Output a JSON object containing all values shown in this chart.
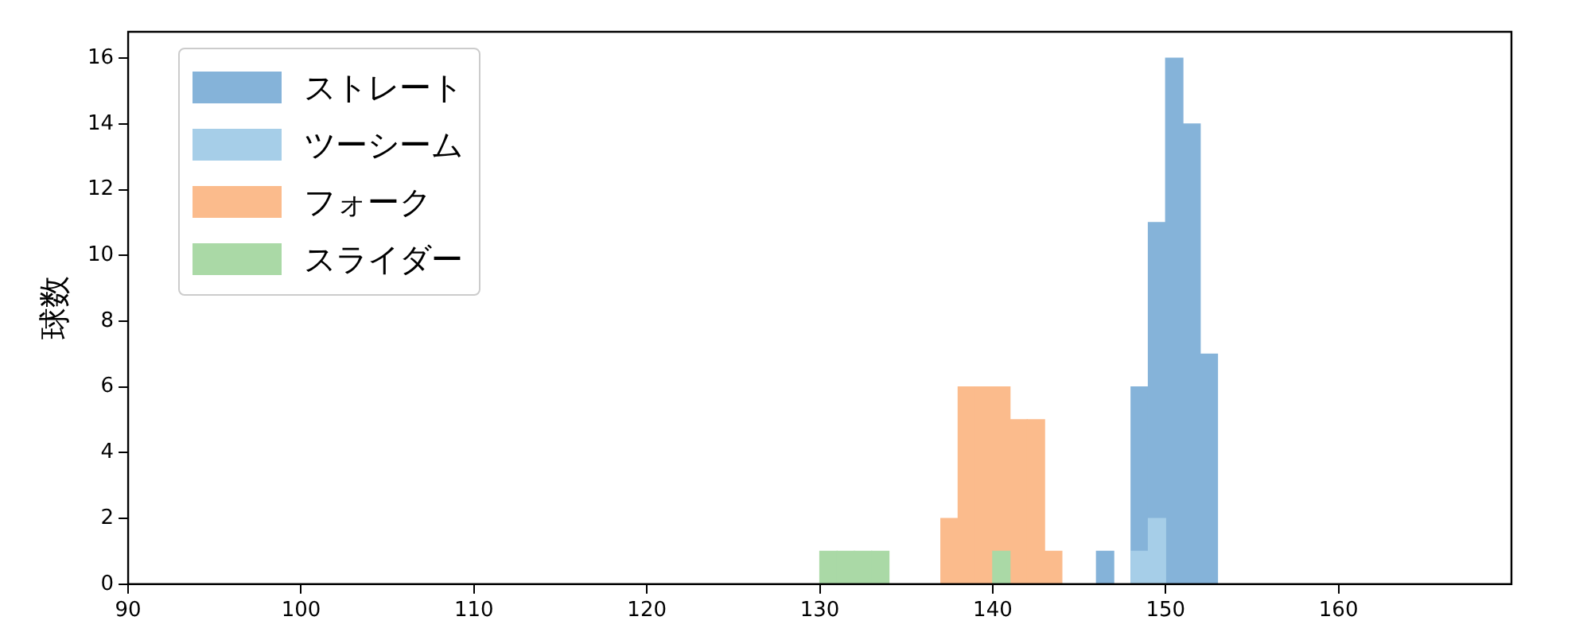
{
  "chart_data": {
    "type": "histogram",
    "ylabel": "球数",
    "xlim": [
      90,
      170
    ],
    "ylim": [
      0,
      16.8
    ],
    "xticks": [
      90,
      100,
      110,
      120,
      130,
      140,
      150,
      160
    ],
    "yticks": [
      0,
      2,
      4,
      6,
      8,
      10,
      12,
      14,
      16
    ],
    "grid": false,
    "legend": "top left",
    "bins": [
      130,
      131,
      132,
      133,
      134,
      135,
      136,
      137,
      138,
      139,
      140,
      141,
      142,
      143,
      144,
      145,
      146,
      147,
      148,
      149,
      150,
      151,
      152,
      153
    ],
    "series": [
      {
        "name": "ストレート",
        "color": "#85b3d9",
        "values": [
          0,
          0,
          0,
          0,
          0,
          0,
          0,
          0,
          0,
          0,
          0,
          0,
          0,
          0,
          0,
          0,
          1,
          0,
          6,
          11,
          16,
          14,
          7
        ]
      },
      {
        "name": "ツーシーム",
        "color": "#a6cee8",
        "values": [
          0,
          0,
          0,
          0,
          0,
          0,
          0,
          0,
          0,
          0,
          0,
          0,
          0,
          0,
          0,
          0,
          0,
          0,
          1,
          2,
          0,
          0,
          0
        ]
      },
      {
        "name": "フォーク",
        "color": "#fbbb8c",
        "values": [
          0,
          0,
          0,
          0,
          0,
          0,
          0,
          2,
          6,
          6,
          6,
          5,
          5,
          1,
          0,
          0,
          0,
          0,
          0,
          0,
          0,
          0,
          0
        ]
      },
      {
        "name": "スライダー",
        "color": "#aad9a6",
        "values": [
          1,
          1,
          1,
          1,
          0,
          0,
          0,
          0,
          0,
          0,
          1,
          0,
          0,
          0,
          0,
          0,
          0,
          0,
          0,
          0,
          0,
          0,
          0
        ]
      }
    ]
  }
}
